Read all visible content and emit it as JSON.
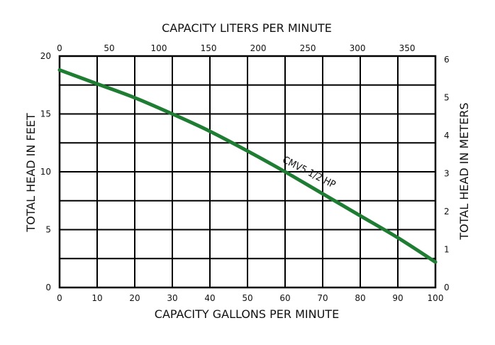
{
  "chart_data": {
    "type": "line",
    "title_top": "CAPACITY LITERS PER MINUTE",
    "xlabel": "CAPACITY GALLONS PER MINUTE",
    "ylabel_left": "TOTAL HEAD IN FEET",
    "ylabel_right": "TOTAL HEAD IN METERS",
    "xlim": [
      0,
      100
    ],
    "ylim": [
      0,
      20
    ],
    "x_ticks": [
      "0",
      "10",
      "20",
      "30",
      "40",
      "50",
      "60",
      "70",
      "80",
      "90",
      "100"
    ],
    "y_ticks": [
      "0",
      "5",
      "10",
      "15",
      "20"
    ],
    "top_ticks": [
      "0",
      "50",
      "100",
      "150",
      "200",
      "250",
      "300",
      "350"
    ],
    "top_tick_values_lpm": [
      0,
      50,
      100,
      150,
      200,
      250,
      300,
      350
    ],
    "right_ticks": [
      "0",
      "1",
      "2",
      "3",
      "4",
      "5",
      "6"
    ],
    "right_tick_values_m": [
      0,
      1,
      2,
      3,
      4,
      5,
      6
    ],
    "grid": true,
    "series": [
      {
        "name": "CMV5 1/2 HP",
        "color": "#1e7d32",
        "x": [
          0,
          10,
          20,
          30,
          40,
          50,
          60,
          70,
          80,
          90,
          100
        ],
        "y": [
          18.8,
          17.6,
          16.4,
          15.0,
          13.5,
          11.8,
          10.0,
          8.1,
          6.2,
          4.3,
          2.2
        ]
      }
    ]
  }
}
